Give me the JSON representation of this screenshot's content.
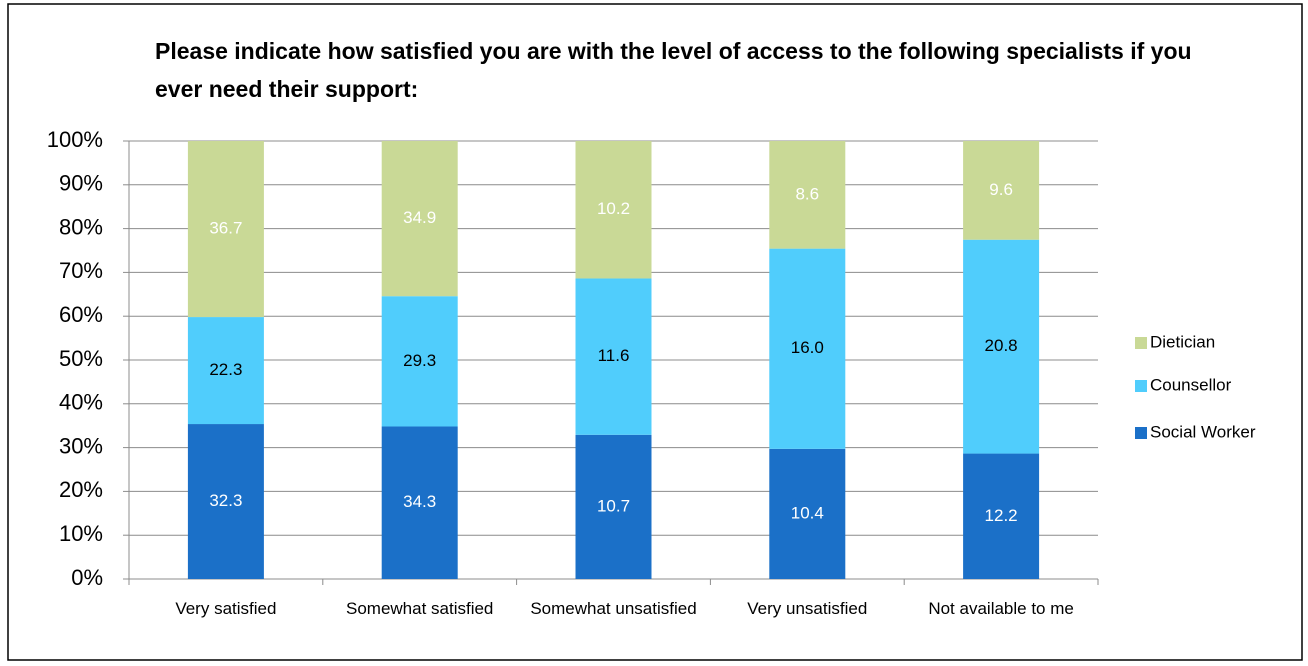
{
  "chart_data": {
    "type": "bar",
    "stacking": "percent",
    "title": "Please indicate how satisfied you are with the level of access to the following specialists if you ever need their support:",
    "categories": [
      "Very satisfied",
      "Somewhat satisfied",
      "Somewhat unsatisfied",
      "Very unsatisfied",
      "Not available to me"
    ],
    "series": [
      {
        "name": "Social Worker",
        "color": "#1b70c8",
        "label_color": "#ffffff",
        "values": [
          32.3,
          34.3,
          10.7,
          10.4,
          12.2
        ]
      },
      {
        "name": "Counsellor",
        "color": "#50cdfc",
        "label_color": "#000000",
        "values": [
          22.3,
          29.3,
          11.6,
          16,
          20.8
        ],
        "value_labels": [
          "22.3",
          "29.3",
          "11.6",
          "16.0",
          "20.8"
        ]
      },
      {
        "name": "Dietician",
        "color": "#c9d996",
        "label_color": "#ffffff",
        "values": [
          36.7,
          34.9,
          10.2,
          8.6,
          9.6
        ]
      }
    ],
    "ylim": [
      0,
      100
    ],
    "yticks": [
      {
        "value": 0,
        "label": "0%"
      },
      {
        "value": 10,
        "label": "10%"
      },
      {
        "value": 20,
        "label": "20%"
      },
      {
        "value": 30,
        "label": "30%"
      },
      {
        "value": 40,
        "label": "40%"
      },
      {
        "value": 50,
        "label": "50%"
      },
      {
        "value": 60,
        "label": "60%"
      },
      {
        "value": 70,
        "label": "70%"
      },
      {
        "value": 80,
        "label": "80%"
      },
      {
        "value": 90,
        "label": "90%"
      },
      {
        "value": 100,
        "label": "100%"
      }
    ],
    "grid": true,
    "legend": "right"
  }
}
